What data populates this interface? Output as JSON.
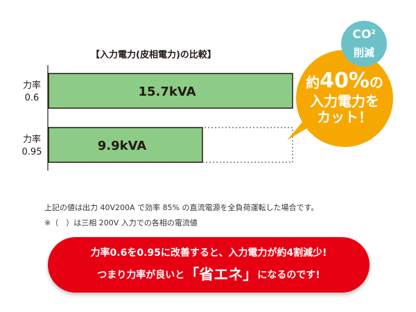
{
  "chart_title": "【入力電力(皮相電力)の比較】",
  "chart_data": {
    "type": "bar",
    "orientation": "horizontal",
    "title": "【入力電力(皮相電力)の比較】",
    "categories": [
      {
        "line1": "力率",
        "line2": "0.6"
      },
      {
        "line1": "力率",
        "line2": "0.95"
      }
    ],
    "values": [
      15.7,
      9.9
    ],
    "value_labels": [
      "15.7kVA",
      "9.9kVA"
    ],
    "unit": "kVA",
    "xlim": [
      0,
      15.7
    ],
    "reference_outline": "dotted outline on lower bar extending to full 15.7kVA length"
  },
  "colors": {
    "bar_fill": "#8dcc86",
    "bar_stroke": "#231815",
    "callout": "#f7a800",
    "co2_badge": "#6cc1c9",
    "banner": "#e60012"
  },
  "callout": {
    "line1_prefix": "約",
    "line1_big": "40%",
    "line1_suffix": "の",
    "line2": "入力電力を",
    "line3": "カット！"
  },
  "co2_badge": {
    "main": "CO",
    "sub": "2",
    "second": "削減"
  },
  "notes": [
    "上記の値は出力 40V200A で効率 85% の直流電源を全負荷運転した場合です。",
    "※（　）は三相 200V 入力での各相の電流値"
  ],
  "banner": {
    "line1": "力率0.6を0.95に改善すると、入力電力が約4割減少!",
    "line2_prefix": "つまり力率が良いと",
    "line2_em": "「省エネ」",
    "line2_suffix": "になるのです!"
  }
}
